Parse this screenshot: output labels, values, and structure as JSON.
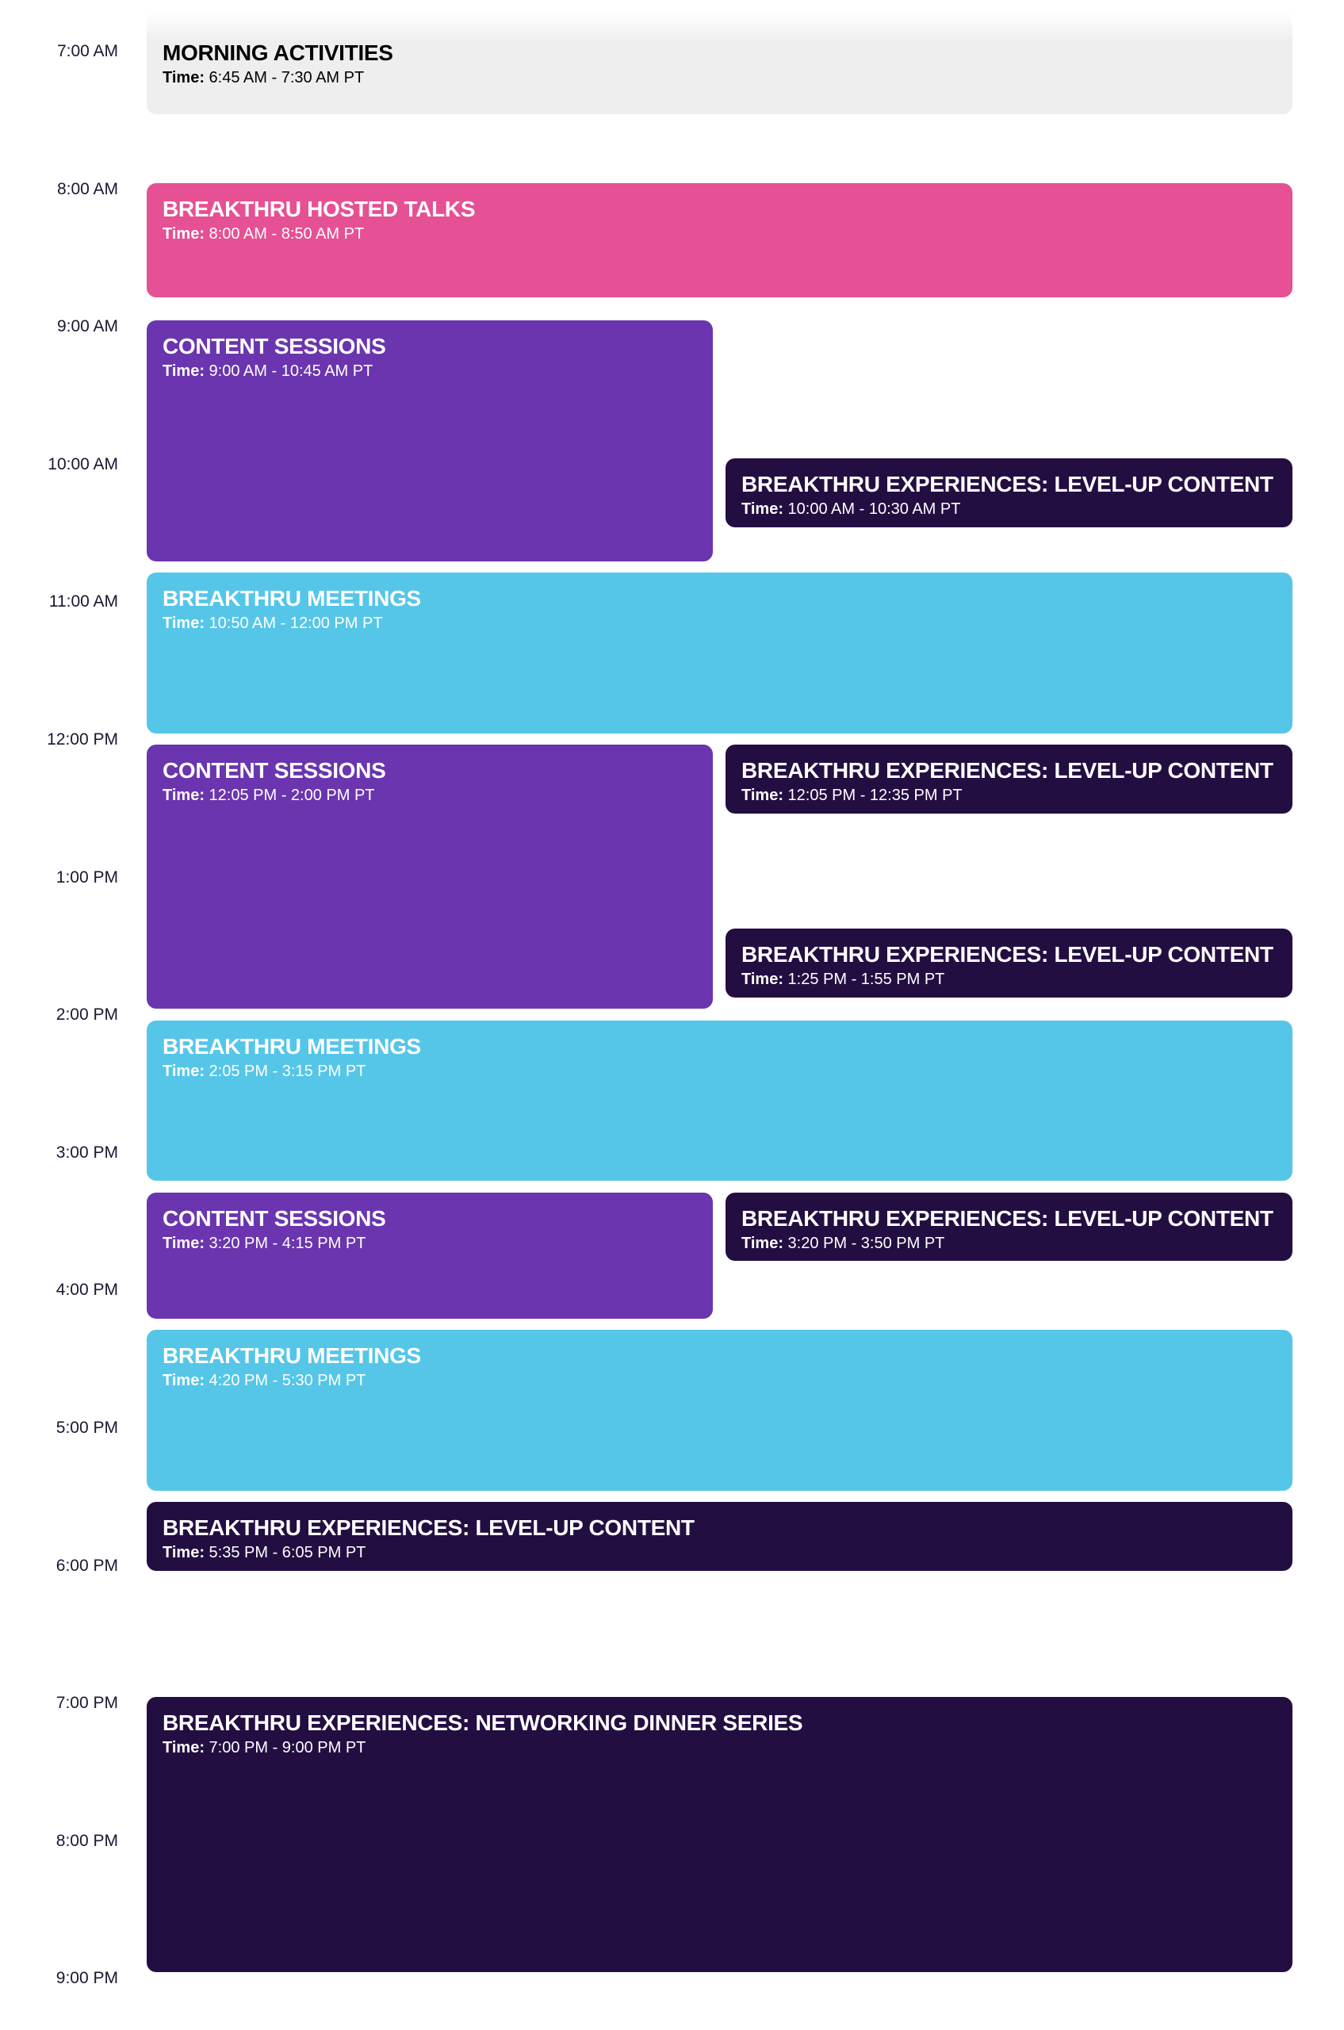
{
  "hours": [
    "7:00 AM",
    "8:00 AM",
    "9:00 AM",
    "10:00 AM",
    "11:00 AM",
    "12:00 PM",
    "1:00 PM",
    "2:00 PM",
    "3:00 PM",
    "4:00 PM",
    "5:00 PM",
    "6:00 PM",
    "7:00 PM",
    "8:00 PM",
    "9:00 PM"
  ],
  "time_label": "Time:",
  "colors": {
    "morning": "#eeeeee",
    "hosted_talks": "#e65094",
    "content_sessions": "#6a35ae",
    "meetings": "#55c6e8",
    "experiences": "#230e42"
  },
  "events": [
    {
      "title": "Morning Activities",
      "time": "6:45 AM - 7:30 AM PT",
      "kind": "morning"
    },
    {
      "title": "Breakthru Hosted Talks",
      "time": "8:00 AM - 8:50 AM PT",
      "kind": "hosted_talks"
    },
    {
      "title": "Content Sessions",
      "time": "9:00 AM - 10:45 AM PT",
      "kind": "content_sessions"
    },
    {
      "title": "Breakthru Experiences: Level-Up Content",
      "time": "10:00 AM - 10:30 AM PT",
      "kind": "experiences"
    },
    {
      "title": "Breakthru Meetings",
      "time": "10:50 AM - 12:00 PM PT",
      "kind": "meetings"
    },
    {
      "title": "Content Sessions",
      "time": "12:05 PM - 2:00 PM PT",
      "kind": "content_sessions"
    },
    {
      "title": "Breakthru Experiences: Level-Up Content",
      "time": "12:05 PM - 12:35 PM PT",
      "kind": "experiences"
    },
    {
      "title": "Breakthru Experiences: Level-Up Content",
      "time": "1:25 PM - 1:55 PM PT",
      "kind": "experiences"
    },
    {
      "title": "Breakthru Meetings",
      "time": "2:05 PM - 3:15 PM PT",
      "kind": "meetings"
    },
    {
      "title": "Content Sessions",
      "time": "3:20 PM - 4:15 PM PT",
      "kind": "content_sessions"
    },
    {
      "title": "Breakthru Experiences: Level-Up Content",
      "time": "3:20 PM - 3:50 PM PT",
      "kind": "experiences"
    },
    {
      "title": "Breakthru Meetings",
      "time": "4:20 PM - 5:30 PM PT",
      "kind": "meetings"
    },
    {
      "title": "Breakthru Experiences: Level-Up Content",
      "time": "5:35 PM - 6:05 PM PT",
      "kind": "experiences"
    },
    {
      "title": "Breakthru Experiences: Networking Dinner Series",
      "time": "7:00 PM -  9:00 PM PT",
      "kind": "experiences"
    }
  ]
}
